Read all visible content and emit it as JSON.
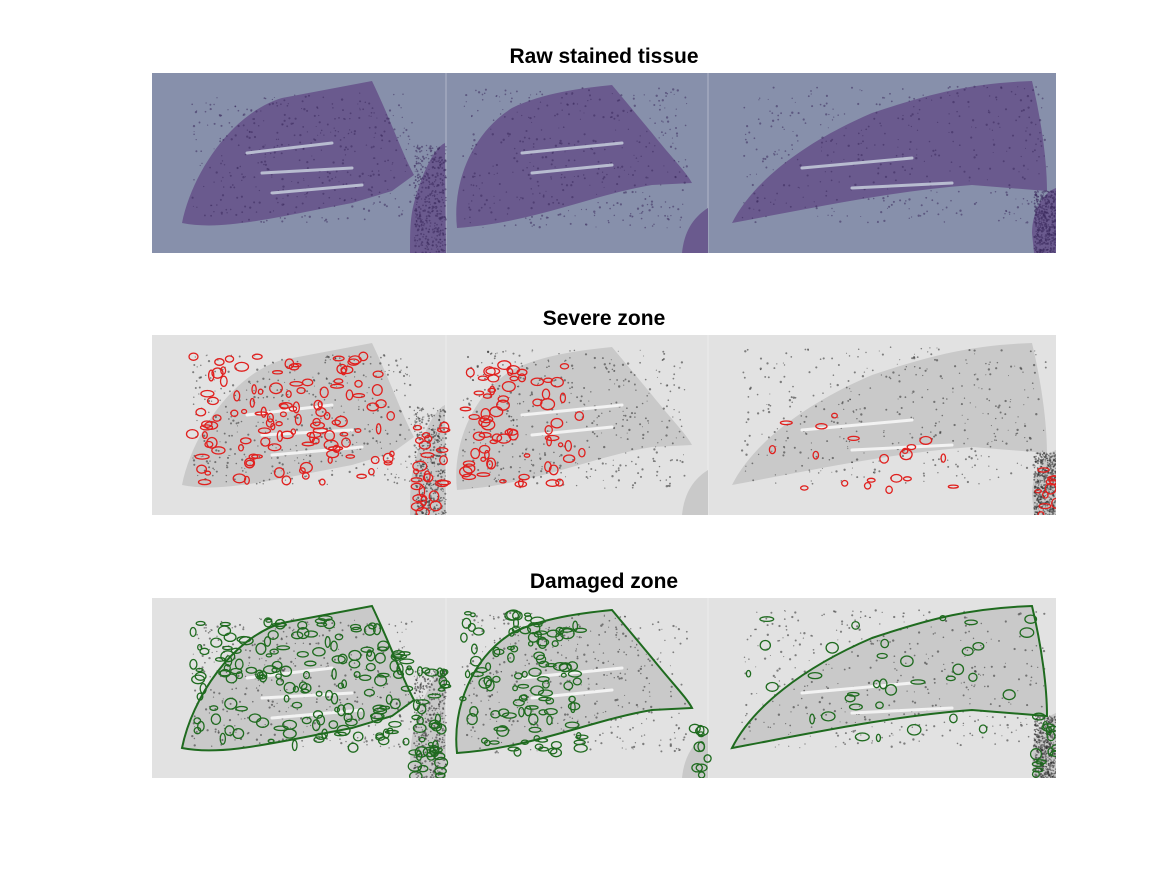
{
  "figure": {
    "panels": [
      {
        "title": "Raw stained tissue",
        "overlay": "none",
        "background_color": "#8790ab",
        "tissue_color": "#6a5a8e",
        "dot_color": "#3a2a5c"
      },
      {
        "title": "Severe zone",
        "overlay": "red-contours",
        "background_color": "#e2e2e2",
        "tissue_color": "#c9c9c9",
        "dot_color": "#2a2a2a",
        "overlay_color": "#e0201e"
      },
      {
        "title": "Damaged zone",
        "overlay": "green-contours",
        "background_color": "#e2e2e2",
        "tissue_color": "#c9c9c9",
        "dot_color": "#2a2a2a",
        "overlay_color": "#1f6b1f"
      }
    ]
  }
}
